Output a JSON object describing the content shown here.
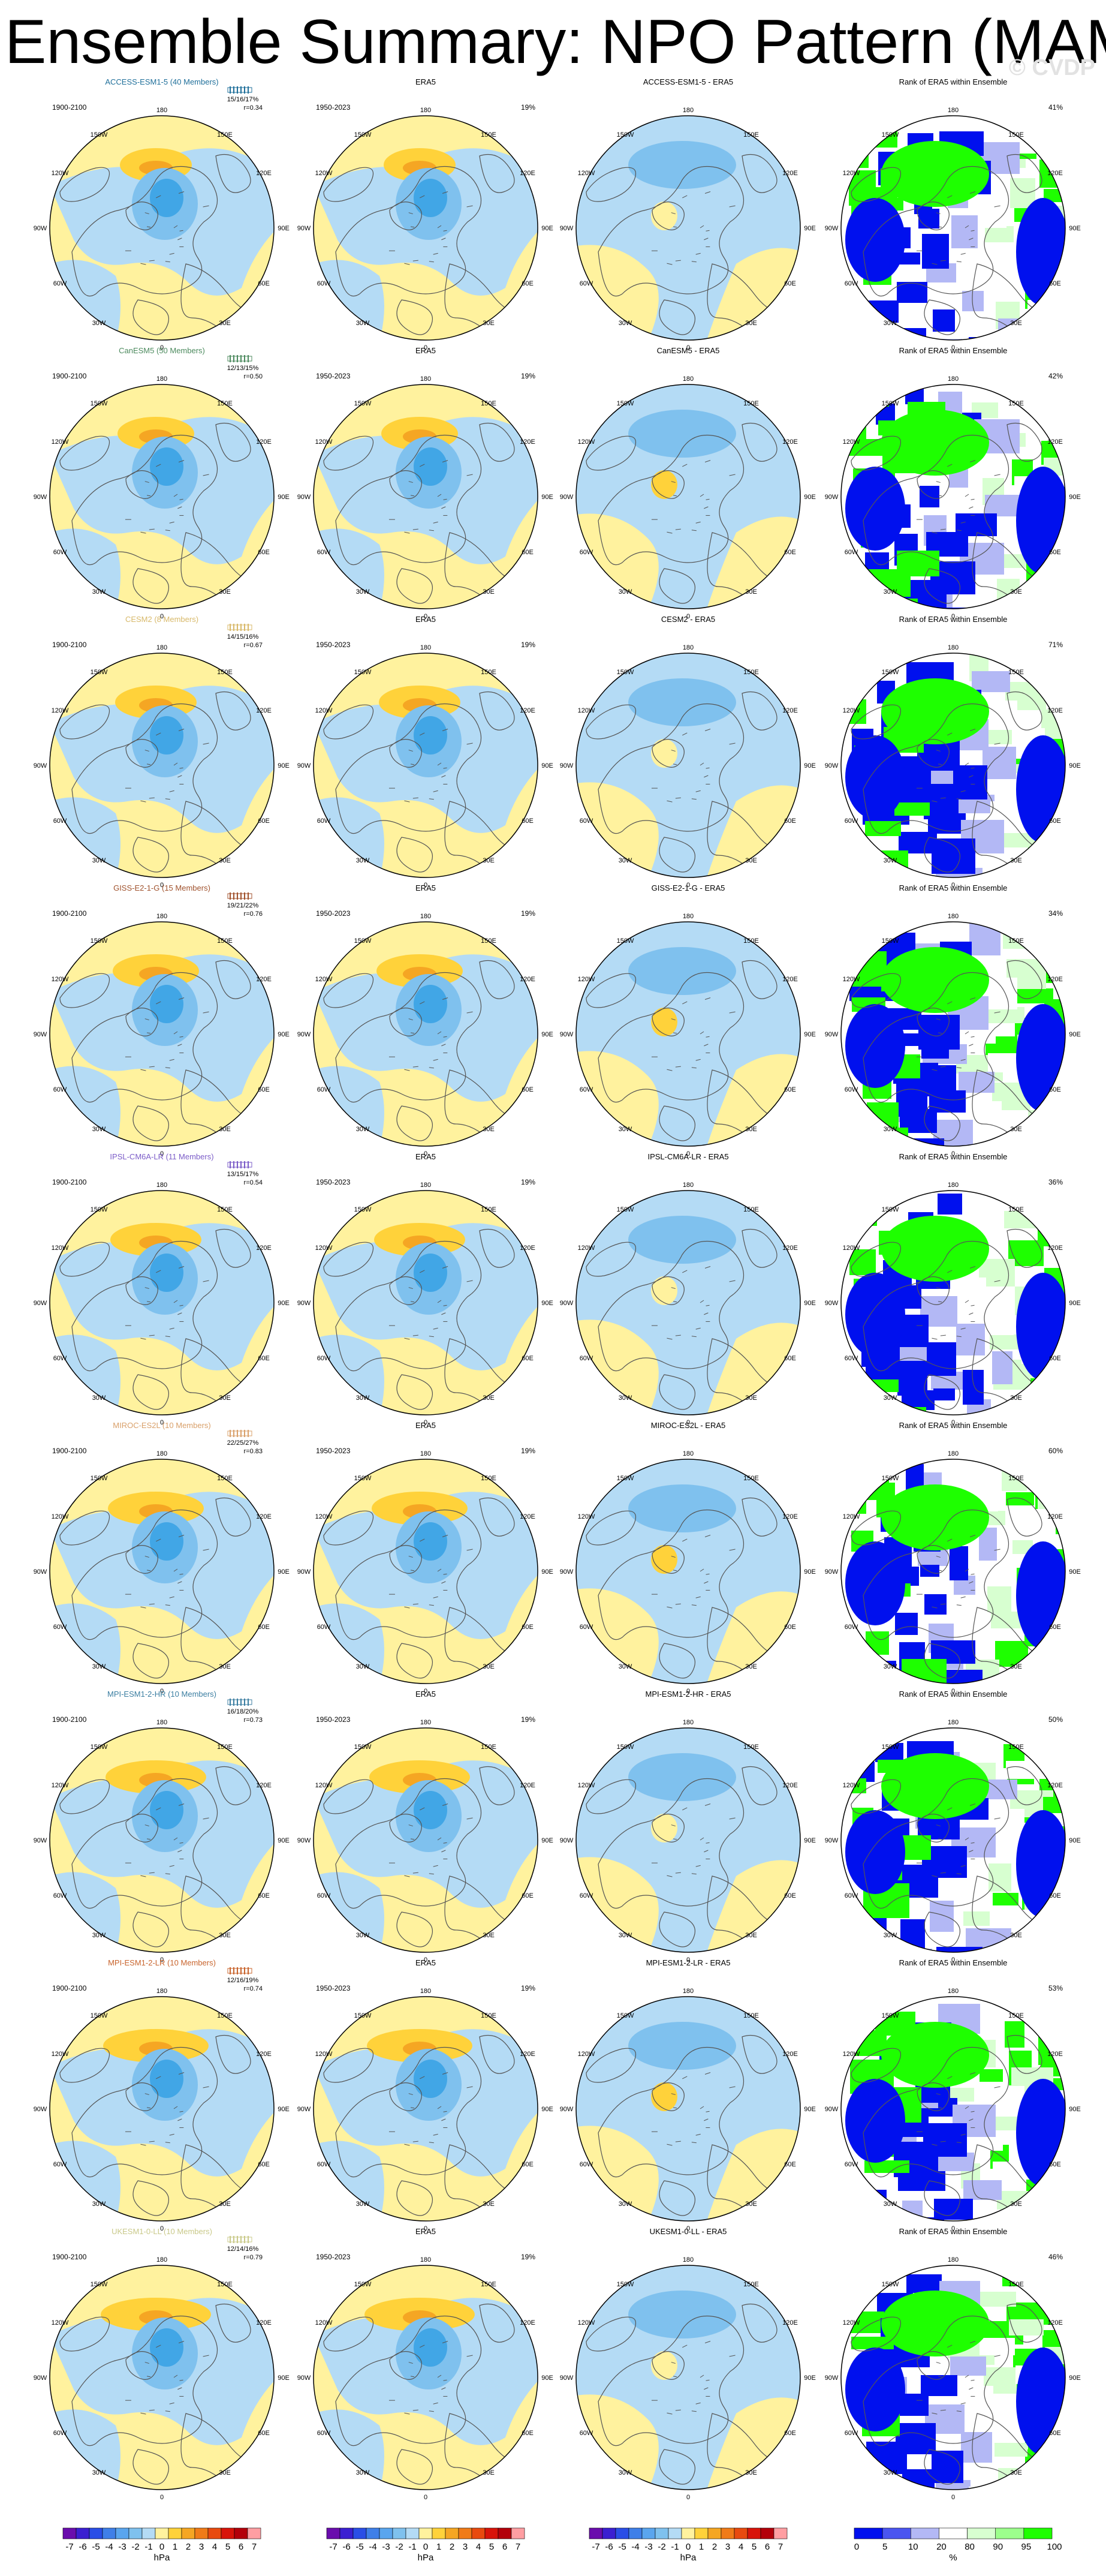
{
  "title": "Ensemble Summary: NPO Pattern (MAM)",
  "watermark": "© CVDP",
  "colors": {
    "yellow": "#fff29e",
    "orange1": "#ffd23a",
    "orange2": "#f5a623",
    "blue1": "#b4dbf5",
    "blue2": "#7fc1ee",
    "blue3": "#41a6e6",
    "green": "#1eff00",
    "light_green": "#d7ffd0",
    "lavender": "#b3b8f5",
    "dark_blue": "#0010ee"
  },
  "column_titles": {
    "ensemble_mean_period": "1900-2100",
    "obs_title": "ERA5",
    "obs_period": "1950-2023",
    "obs_pct": "19%",
    "rank_title": "Rank of ERA5 within Ensemble"
  },
  "map_labels": {
    "top": "180",
    "bottom": "0",
    "left": "90W",
    "right": "90E",
    "upper_left_1": "150W",
    "upper_left_2": "120W",
    "upper_right_1": "150E",
    "upper_right_2": "120E",
    "lower_left_1": "60W",
    "lower_left_2": "30W",
    "lower_right_1": "60E",
    "lower_right_2": "30E"
  },
  "rows": [
    {
      "model": "ACCESS-ESM1-5 (40 Members)",
      "color": "#1f6f9a",
      "stats": "15/16/17%",
      "r": "r=0.34",
      "diff": "ACCESS-ESM1-5 - ERA5",
      "rank_pct": "41%"
    },
    {
      "model": "CanESM5 (50 Members)",
      "color": "#4c8a5e",
      "stats": "12/13/15%",
      "r": "r=0.50",
      "diff": "CanESM5 - ERA5",
      "rank_pct": "42%"
    },
    {
      "model": "CESM2 (8 Members)",
      "color": "#d8b96a",
      "stats": "14/15/16%",
      "r": "r=0.67",
      "diff": "CESM2 - ERA5",
      "rank_pct": "71%"
    },
    {
      "model": "GISS-E2-1-G (15 Members)",
      "color": "#a0522d",
      "stats": "19/21/22%",
      "r": "r=0.76",
      "diff": "GISS-E2-1-G - ERA5",
      "rank_pct": "34%"
    },
    {
      "model": "IPSL-CM6A-LR (11 Members)",
      "color": "#7b5cc8",
      "stats": "13/15/17%",
      "r": "r=0.54",
      "diff": "IPSL-CM6A-LR - ERA5",
      "rank_pct": "36%"
    },
    {
      "model": "MIROC-ES2L (10 Members)",
      "color": "#d9a06a",
      "stats": "22/25/27%",
      "r": "r=0.83",
      "diff": "MIROC-ES2L - ERA5",
      "rank_pct": "60%"
    },
    {
      "model": "MPI-ESM1-2-HR (10 Members)",
      "color": "#3b7ea1",
      "stats": "16/18/20%",
      "r": "r=0.73",
      "diff": "MPI-ESM1-2-HR - ERA5",
      "rank_pct": "50%"
    },
    {
      "model": "MPI-ESM1-2-LR (10 Members)",
      "color": "#c8642d",
      "stats": "12/16/19%",
      "r": "r=0.74",
      "diff": "MPI-ESM1-2-LR - ERA5",
      "rank_pct": "53%"
    },
    {
      "model": "UKESM1-0-LL (10 Members)",
      "color": "#c9c98a",
      "stats": "12/14/16%",
      "r": "r=0.79",
      "diff": "UKESM1-0-LL - ERA5",
      "rank_pct": "46%"
    }
  ],
  "colorbars": {
    "hpa_labels": [
      "-7",
      "-6",
      "-5",
      "-4",
      "-3",
      "-2",
      "-1",
      "0",
      "1",
      "2",
      "3",
      "4",
      "5",
      "6",
      "7"
    ],
    "hpa_unit": "hPa",
    "hpa_colors": [
      "#6a0dad",
      "#3b1fd1",
      "#2a4ee6",
      "#3f7fe8",
      "#5aa5ee",
      "#7fc1ee",
      "#b4dbf5",
      "#fff29e",
      "#ffd23a",
      "#f5a623",
      "#f07b18",
      "#e84a0f",
      "#d8140a",
      "#b3000a",
      "#ff9ea2"
    ],
    "pct_labels": [
      "0",
      "5",
      "10",
      "20",
      "80",
      "90",
      "95",
      "100"
    ],
    "pct_unit": "%",
    "pct_colors": [
      "#0010ee",
      "#4a55f0",
      "#b3b8f5",
      "#ffffff",
      "#d7ffd0",
      "#9cff8c",
      "#1eff00"
    ]
  }
}
